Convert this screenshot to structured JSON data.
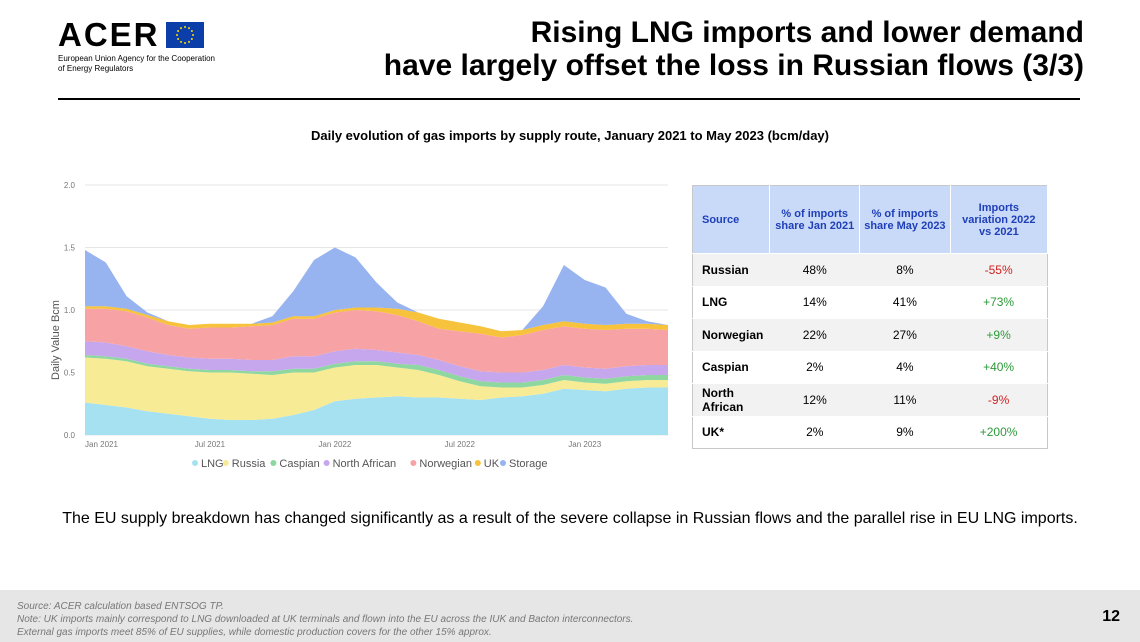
{
  "header": {
    "logo_text": "ACER",
    "logo_sub_1": "European Union Agency for the Cooperation",
    "logo_sub_2": "of Energy Regulators",
    "title_1": "Rising LNG imports and lower demand",
    "title_2": "have largely offset the loss in Russian flows (3/3)"
  },
  "chart_title": "Daily evolution of gas imports by supply route, January 2021 to May 2023 (bcm/day)",
  "chart_data": {
    "type": "area",
    "ylabel": "Daily Value Bcm",
    "xlabel": "",
    "ylim": [
      0,
      2.0
    ],
    "yticks": [
      "0.0",
      "0.5",
      "1.0",
      "1.5",
      "2.0"
    ],
    "x_ticks": [
      "Jan 2021",
      "Jul 2021",
      "Jan 2022",
      "Jul 2022",
      "Jan 2023"
    ],
    "x": [
      "2021-01",
      "2021-02",
      "2021-03",
      "2021-04",
      "2021-05",
      "2021-06",
      "2021-07",
      "2021-08",
      "2021-09",
      "2021-10",
      "2021-11",
      "2021-12",
      "2022-01",
      "2022-02",
      "2022-03",
      "2022-04",
      "2022-05",
      "2022-06",
      "2022-07",
      "2022-08",
      "2022-09",
      "2022-10",
      "2022-11",
      "2022-12",
      "2023-01",
      "2023-02",
      "2023-03",
      "2023-04",
      "2023-05"
    ],
    "series": [
      {
        "name": "LNG",
        "color": "#a6e1f2",
        "values": [
          0.26,
          0.24,
          0.22,
          0.19,
          0.17,
          0.15,
          0.13,
          0.12,
          0.12,
          0.13,
          0.16,
          0.2,
          0.27,
          0.29,
          0.3,
          0.31,
          0.3,
          0.3,
          0.29,
          0.28,
          0.3,
          0.31,
          0.33,
          0.37,
          0.36,
          0.35,
          0.37,
          0.38,
          0.38
        ]
      },
      {
        "name": "Russia",
        "color": "#f8eb96",
        "values": [
          0.36,
          0.37,
          0.37,
          0.36,
          0.36,
          0.36,
          0.37,
          0.38,
          0.37,
          0.35,
          0.34,
          0.3,
          0.27,
          0.27,
          0.26,
          0.23,
          0.22,
          0.18,
          0.14,
          0.11,
          0.08,
          0.07,
          0.07,
          0.07,
          0.06,
          0.06,
          0.06,
          0.06,
          0.06
        ]
      },
      {
        "name": "Caspian",
        "color": "#8ed7a0",
        "values": [
          0.02,
          0.02,
          0.02,
          0.02,
          0.02,
          0.02,
          0.02,
          0.02,
          0.02,
          0.03,
          0.03,
          0.03,
          0.03,
          0.03,
          0.03,
          0.03,
          0.04,
          0.04,
          0.04,
          0.04,
          0.04,
          0.04,
          0.04,
          0.04,
          0.04,
          0.04,
          0.04,
          0.04,
          0.04
        ]
      },
      {
        "name": "North African",
        "color": "#c6a7ee",
        "values": [
          0.11,
          0.11,
          0.1,
          0.1,
          0.09,
          0.09,
          0.09,
          0.09,
          0.09,
          0.09,
          0.1,
          0.1,
          0.1,
          0.1,
          0.09,
          0.09,
          0.08,
          0.08,
          0.08,
          0.08,
          0.08,
          0.08,
          0.08,
          0.08,
          0.08,
          0.08,
          0.08,
          0.08,
          0.08
        ]
      },
      {
        "name": "Norwegian",
        "color": "#f7a3a6",
        "values": [
          0.26,
          0.27,
          0.28,
          0.27,
          0.24,
          0.23,
          0.25,
          0.25,
          0.27,
          0.28,
          0.3,
          0.3,
          0.31,
          0.31,
          0.31,
          0.3,
          0.27,
          0.25,
          0.28,
          0.3,
          0.28,
          0.3,
          0.32,
          0.31,
          0.31,
          0.31,
          0.3,
          0.29,
          0.28
        ]
      },
      {
        "name": "UK",
        "color": "#f7c23c",
        "values": [
          0.02,
          0.02,
          0.02,
          0.02,
          0.03,
          0.03,
          0.03,
          0.03,
          0.02,
          0.02,
          0.02,
          0.02,
          0.02,
          0.02,
          0.03,
          0.05,
          0.07,
          0.08,
          0.07,
          0.06,
          0.05,
          0.04,
          0.04,
          0.04,
          0.04,
          0.04,
          0.04,
          0.04,
          0.04
        ]
      },
      {
        "name": "Storage",
        "color": "#97b3f0",
        "values": [
          0.45,
          0.35,
          0.1,
          0.02,
          0.0,
          0.0,
          0.0,
          0.0,
          0.0,
          0.05,
          0.2,
          0.45,
          0.5,
          0.4,
          0.2,
          0.05,
          0.0,
          0.0,
          0.0,
          0.0,
          0.0,
          0.0,
          0.15,
          0.45,
          0.35,
          0.3,
          0.08,
          0.02,
          0.0
        ]
      }
    ]
  },
  "table": {
    "headers": [
      "Source",
      "% of imports share Jan 2021",
      "% of imports share May 2023",
      "Imports variation 2022 vs 2021"
    ],
    "rows": [
      {
        "source": "Russian",
        "jan2021": "48%",
        "may2023": "8%",
        "variation": "-55%",
        "sign": "neg"
      },
      {
        "source": "LNG",
        "jan2021": "14%",
        "may2023": "41%",
        "variation": "+73%",
        "sign": "pos"
      },
      {
        "source": "Norwegian",
        "jan2021": "22%",
        "may2023": "27%",
        "variation": "+9%",
        "sign": "pos"
      },
      {
        "source": "Caspian",
        "jan2021": "2%",
        "may2023": "4%",
        "variation": "+40%",
        "sign": "pos"
      },
      {
        "source": "North African",
        "jan2021": "12%",
        "may2023": "11%",
        "variation": "-9%",
        "sign": "neg"
      },
      {
        "source": "UK*",
        "jan2021": "2%",
        "may2023": "9%",
        "variation": "+200%",
        "sign": "pos"
      }
    ]
  },
  "summary": "The EU supply breakdown has changed significantly as a result of the severe collapse in Russian flows and the parallel rise in EU LNG imports.",
  "footer": {
    "note_1": "Source: ACER calculation based ENTSOG TP.",
    "note_2": "Note: UK imports mainly correspond to LNG downloaded at UK terminals and flown into the EU across the IUK and Bacton interconnectors.",
    "note_3": "External gas imports meet 85% of EU supplies, while domestic production covers for the other 15% approx.",
    "page_number": "12"
  }
}
